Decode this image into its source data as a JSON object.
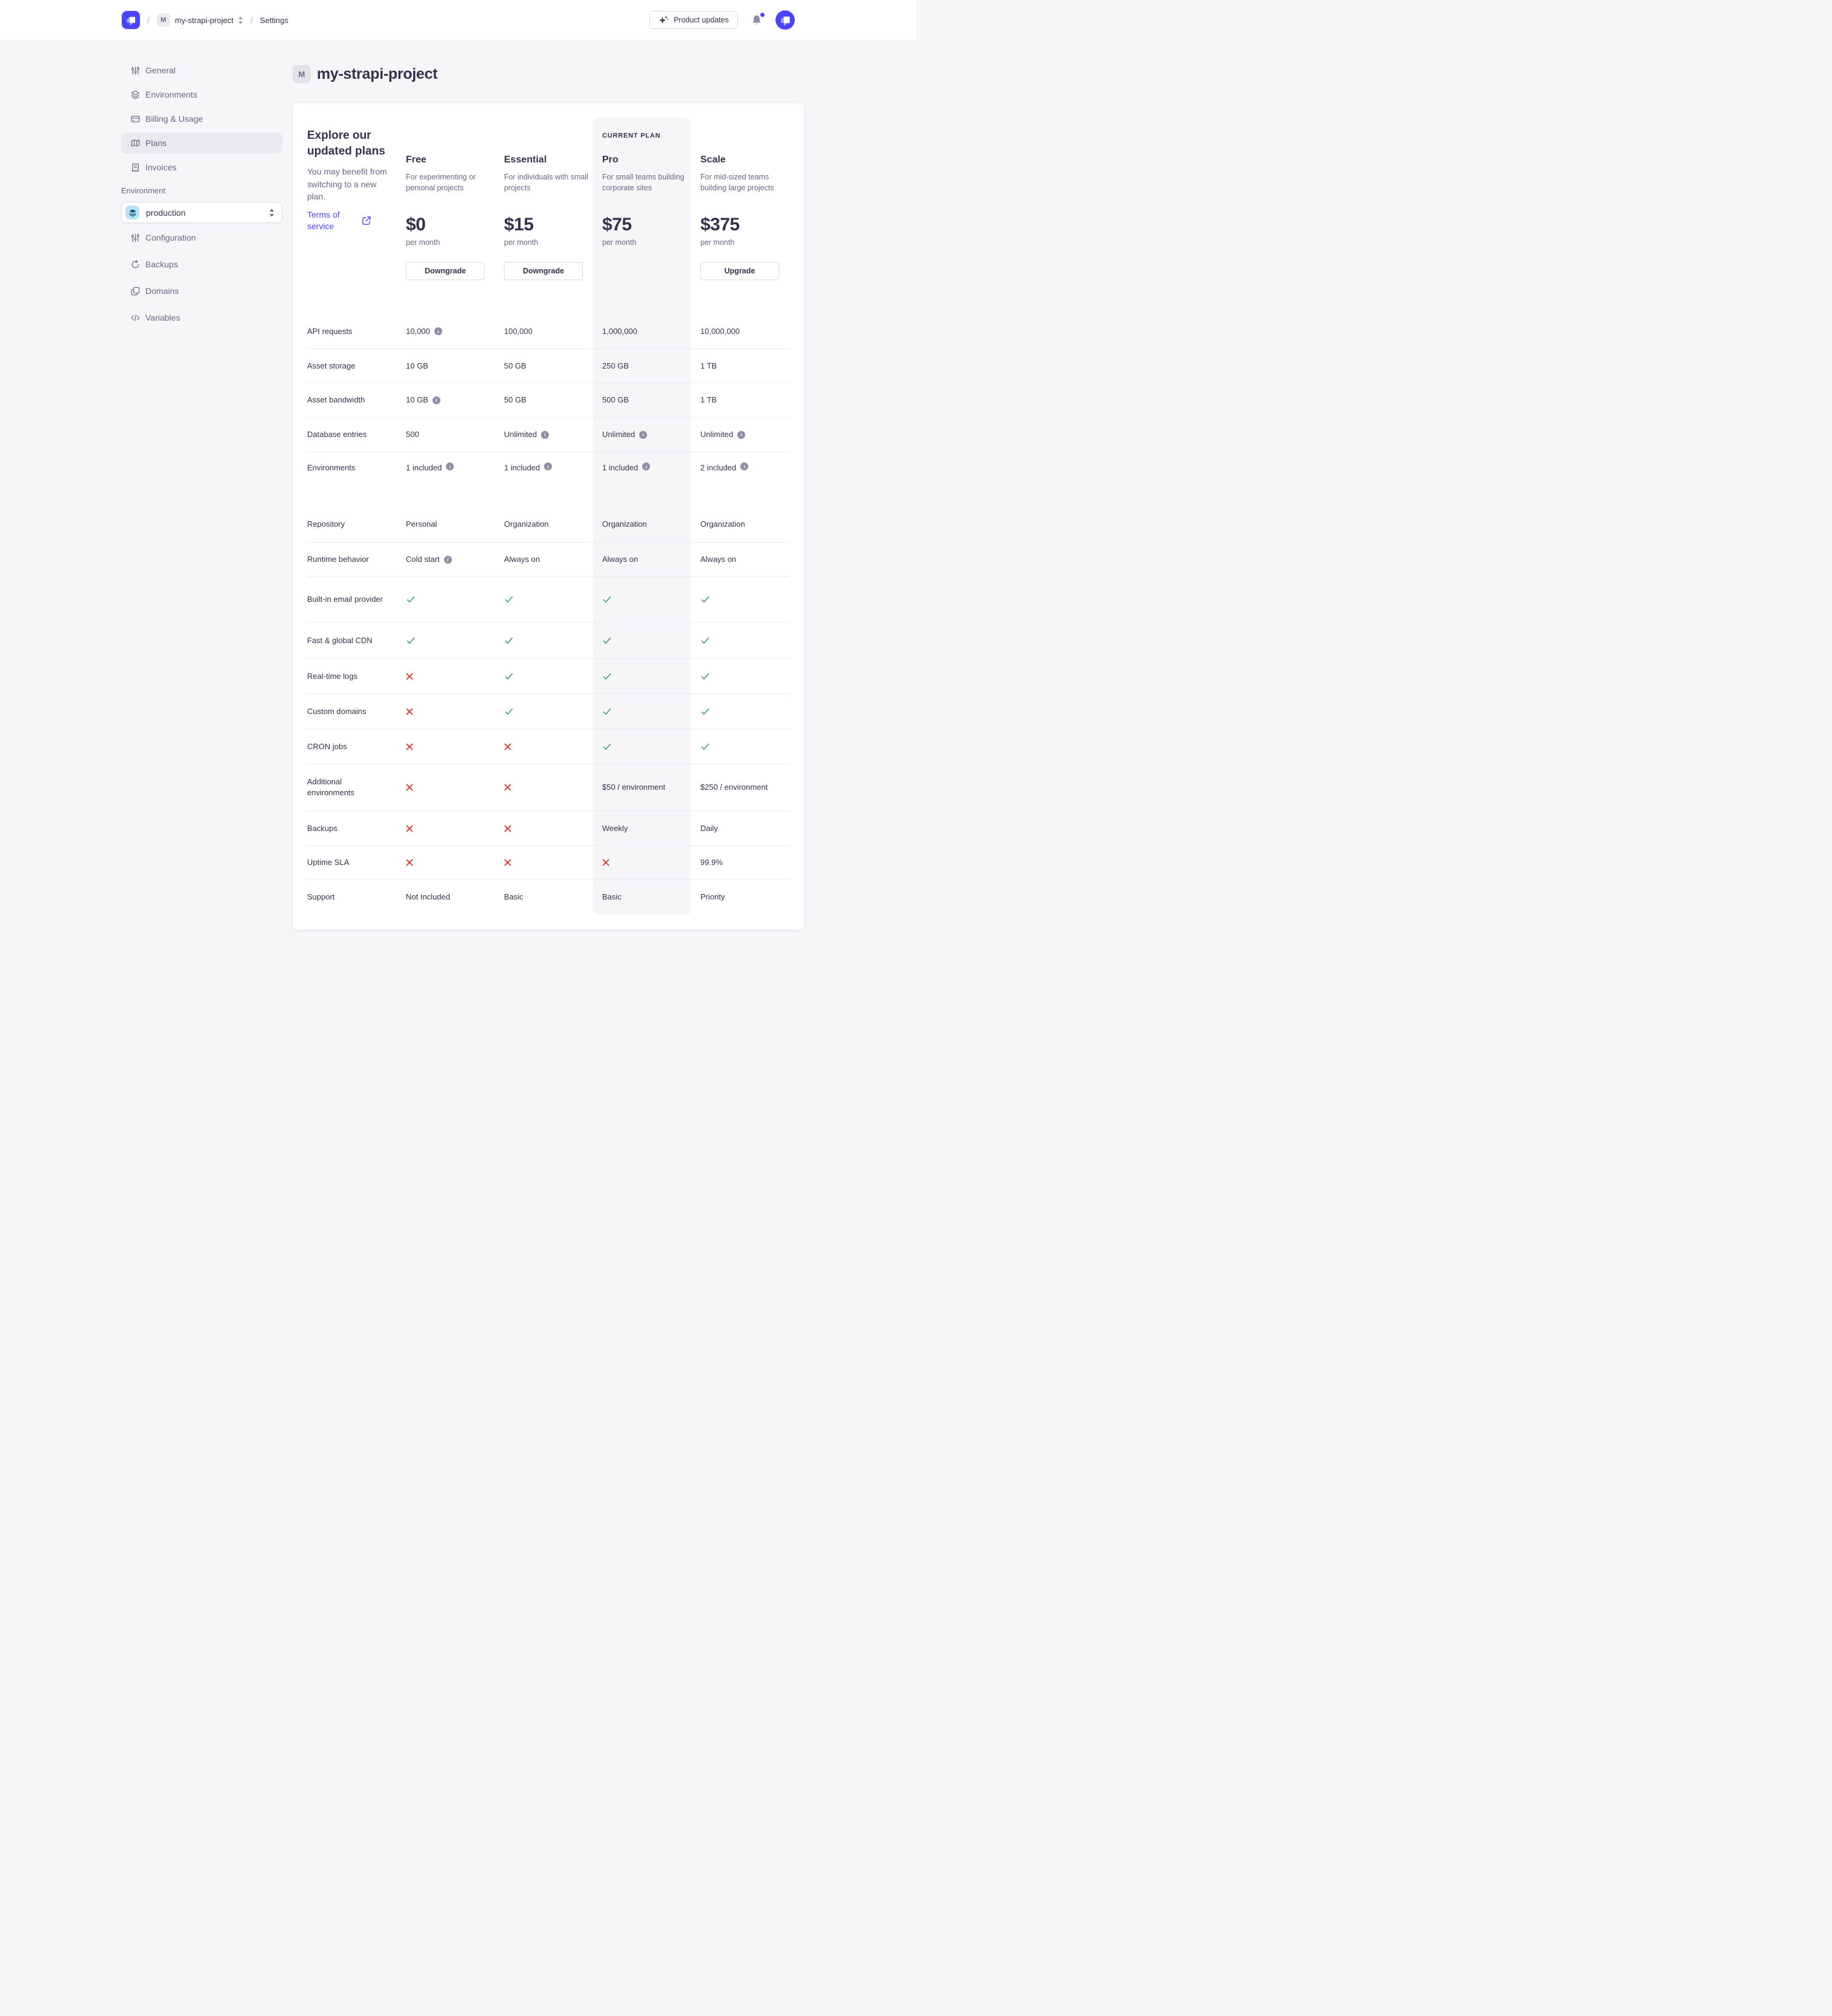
{
  "colors": {
    "accent": "#4945ff",
    "success": "#4aa567",
    "danger": "#dd2c20",
    "text_dark": "#32324d",
    "text_muted": "#666687",
    "highlight_column": "#f6f6f9"
  },
  "header": {
    "separator": "/",
    "project_badge": "M",
    "project_name": "my-strapi-project",
    "section": "Settings",
    "product_updates_label": "Product updates"
  },
  "sidebar": {
    "items": [
      {
        "label": "General",
        "icon": "sliders-icon",
        "active": false
      },
      {
        "label": "Environments",
        "icon": "layers-icon",
        "active": false
      },
      {
        "label": "Billing & Usage",
        "icon": "credit-card-icon",
        "active": false
      },
      {
        "label": "Plans",
        "icon": "map-icon",
        "active": true
      },
      {
        "label": "Invoices",
        "icon": "receipt-icon",
        "active": false
      }
    ],
    "environment_section_label": "Environment",
    "environment_select": {
      "value": "production",
      "icon": "layers-icon"
    },
    "environment_items": [
      {
        "label": "Configuration",
        "icon": "sliders-icon"
      },
      {
        "label": "Backups",
        "icon": "refresh-icon"
      },
      {
        "label": "Domains",
        "icon": "copy-icon"
      },
      {
        "label": "Variables",
        "icon": "code-icon"
      }
    ]
  },
  "page": {
    "title_badge": "M",
    "title": "my-strapi-project"
  },
  "plans": {
    "intro": {
      "heading": "Explore our updated plans",
      "subheading": "You may benefit from switching to a new plan.",
      "terms_label": "Terms of service"
    },
    "current_plan_label": "CURRENT PLAN",
    "list": [
      {
        "name": "Free",
        "description": "For experimenting or personal projects",
        "price": "$0",
        "period": "per month",
        "action": "Downgrade",
        "current": false
      },
      {
        "name": "Essential",
        "description": "For individuals with small projects",
        "price": "$15",
        "period": "per month",
        "action": "Downgrade",
        "current": false
      },
      {
        "name": "Pro",
        "description": "For small teams building corporate sites",
        "price": "$75",
        "period": "per month",
        "action": null,
        "current": true
      },
      {
        "name": "Scale",
        "description": "For mid-sized teams building large projects",
        "price": "$375",
        "period": "per month",
        "action": "Upgrade",
        "current": false
      }
    ],
    "rows": [
      {
        "label": "API requests",
        "values": [
          {
            "type": "text",
            "text": "10,000",
            "info": true
          },
          {
            "type": "text",
            "text": "100,000"
          },
          {
            "type": "text",
            "text": "1,000,000"
          },
          {
            "type": "text",
            "text": "10,000,000"
          }
        ]
      },
      {
        "label": "Asset storage",
        "values": [
          {
            "type": "text",
            "text": "10 GB"
          },
          {
            "type": "text",
            "text": "50 GB"
          },
          {
            "type": "text",
            "text": "250 GB"
          },
          {
            "type": "text",
            "text": "1 TB"
          }
        ]
      },
      {
        "label": "Asset bandwidth",
        "values": [
          {
            "type": "text",
            "text": "10 GB",
            "info": true
          },
          {
            "type": "text",
            "text": "50 GB"
          },
          {
            "type": "text",
            "text": "500 GB"
          },
          {
            "type": "text",
            "text": "1 TB"
          }
        ]
      },
      {
        "label": "Database entries",
        "values": [
          {
            "type": "text",
            "text": "500"
          },
          {
            "type": "text",
            "text": "Unlimited",
            "info": true
          },
          {
            "type": "text",
            "text": "Unlimited",
            "info": true
          },
          {
            "type": "text",
            "text": "Unlimited",
            "info": true
          }
        ]
      },
      {
        "label": "Environments",
        "values": [
          {
            "type": "text",
            "text": "1 included",
            "info": true
          },
          {
            "type": "text",
            "text": "1 included",
            "info": true
          },
          {
            "type": "text",
            "text": "1 included",
            "info": true
          },
          {
            "type": "text",
            "text": "2 included",
            "info": true
          }
        ]
      },
      {
        "label": "Repository",
        "values": [
          {
            "type": "text",
            "text": "Personal"
          },
          {
            "type": "text",
            "text": "Organization"
          },
          {
            "type": "text",
            "text": "Organization"
          },
          {
            "type": "text",
            "text": "Organization"
          }
        ]
      },
      {
        "label": "Runtime behavior",
        "values": [
          {
            "type": "text",
            "text": "Cold start",
            "info": true
          },
          {
            "type": "text",
            "text": "Always on"
          },
          {
            "type": "text",
            "text": "Always on"
          },
          {
            "type": "text",
            "text": "Always on"
          }
        ]
      },
      {
        "label": "Built-in email provider",
        "values": [
          {
            "type": "check"
          },
          {
            "type": "check"
          },
          {
            "type": "check"
          },
          {
            "type": "check"
          }
        ]
      },
      {
        "label": "Fast & global CDN",
        "values": [
          {
            "type": "check"
          },
          {
            "type": "check"
          },
          {
            "type": "check"
          },
          {
            "type": "check"
          }
        ]
      },
      {
        "label": "Real-time logs",
        "values": [
          {
            "type": "cross"
          },
          {
            "type": "check"
          },
          {
            "type": "check"
          },
          {
            "type": "check"
          }
        ]
      },
      {
        "label": "Custom domains",
        "values": [
          {
            "type": "cross"
          },
          {
            "type": "check"
          },
          {
            "type": "check"
          },
          {
            "type": "check"
          }
        ]
      },
      {
        "label": "CRON jobs",
        "values": [
          {
            "type": "cross"
          },
          {
            "type": "cross"
          },
          {
            "type": "check"
          },
          {
            "type": "check"
          }
        ]
      },
      {
        "label": "Additional environments",
        "values": [
          {
            "type": "cross"
          },
          {
            "type": "cross"
          },
          {
            "type": "text",
            "text": "$50 / environment"
          },
          {
            "type": "text",
            "text": "$250 / environment"
          }
        ]
      },
      {
        "label": "Backups",
        "values": [
          {
            "type": "cross"
          },
          {
            "type": "cross"
          },
          {
            "type": "text",
            "text": "Weekly"
          },
          {
            "type": "text",
            "text": "Daily"
          }
        ]
      },
      {
        "label": "Uptime SLA",
        "values": [
          {
            "type": "cross"
          },
          {
            "type": "cross"
          },
          {
            "type": "cross"
          },
          {
            "type": "text",
            "text": "99.9%"
          }
        ]
      },
      {
        "label": "Support",
        "values": [
          {
            "type": "text",
            "text": "Not Included"
          },
          {
            "type": "text",
            "text": "Basic"
          },
          {
            "type": "text",
            "text": "Basic"
          },
          {
            "type": "text",
            "text": "Priority"
          }
        ]
      }
    ]
  }
}
